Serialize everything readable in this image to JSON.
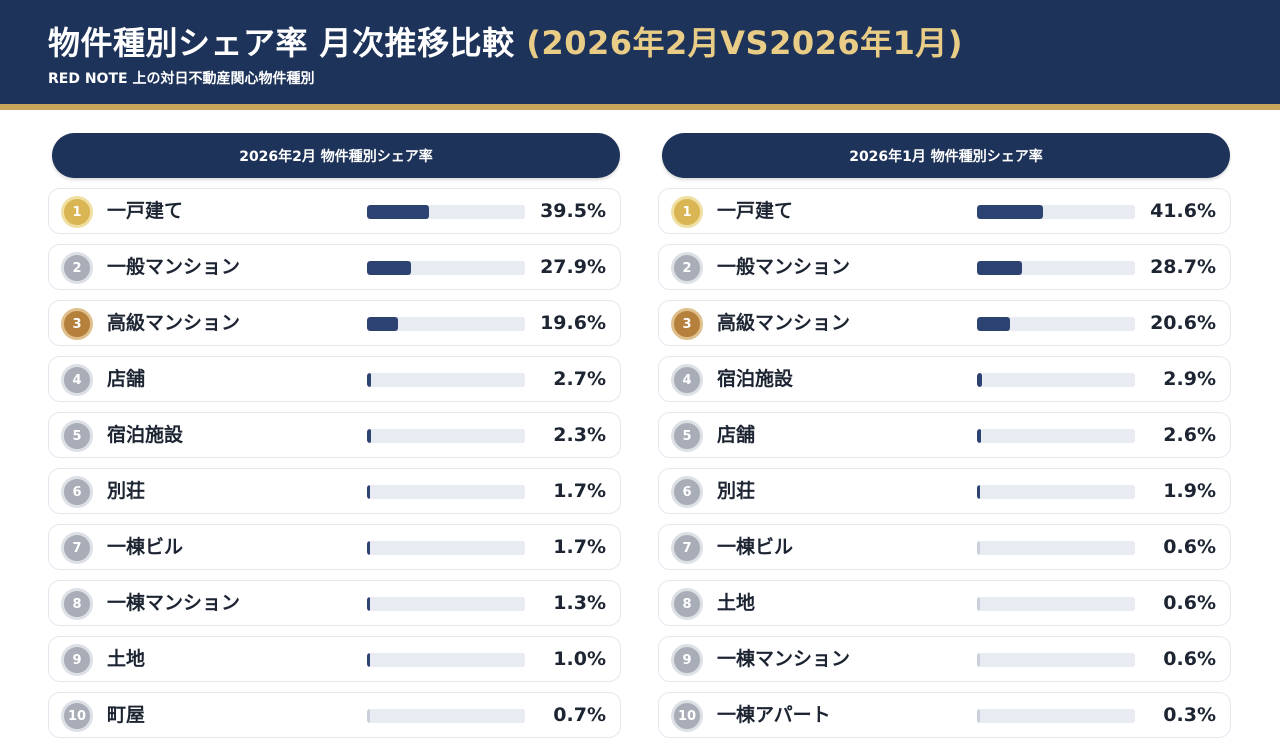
{
  "header": {
    "title_main": "物件種別シェア率 月次推移比較 ",
    "title_period": "(2026年2月VS2026年1月)",
    "subtitle": "RED NOTE 上の対日不動産関心物件種別"
  },
  "colors": {
    "navy": "#1e3359",
    "gold_line": "#c9a75a",
    "bar": "#2c4270",
    "rank_gold": "#d9b553",
    "rank_silver": "#a8adb7",
    "rank_bronze": "#b5803c"
  },
  "chart_data": [
    {
      "type": "bar",
      "title": "2026年2月 物件種別シェア率",
      "unit": "%",
      "ylim": [
        0,
        100
      ],
      "ranks": [
        "1",
        "2",
        "3",
        "4",
        "5",
        "6",
        "7",
        "8",
        "9",
        "10"
      ],
      "categories": [
        "一戸建て",
        "一般マンション",
        "高級マンション",
        "店舗",
        "宿泊施設",
        "別荘",
        "一棟ビル",
        "一棟マンション",
        "土地",
        "町屋"
      ],
      "values": [
        39.5,
        27.9,
        19.6,
        2.7,
        2.3,
        1.7,
        1.7,
        1.3,
        1.0,
        0.7
      ],
      "labels": [
        "39.5%",
        "27.9%",
        "19.6%",
        "2.7%",
        "2.3%",
        "1.7%",
        "1.7%",
        "1.3%",
        "1.0%",
        "0.7%"
      ]
    },
    {
      "type": "bar",
      "title": "2026年1月 物件種別シェア率",
      "unit": "%",
      "ylim": [
        0,
        100
      ],
      "ranks": [
        "1",
        "2",
        "3",
        "4",
        "5",
        "6",
        "7",
        "8",
        "9",
        "10"
      ],
      "categories": [
        "一戸建て",
        "一般マンション",
        "高級マンション",
        "宿泊施設",
        "店舗",
        "別荘",
        "一棟ビル",
        "土地",
        "一棟マンション",
        "一棟アパート"
      ],
      "values": [
        41.6,
        28.7,
        20.6,
        2.9,
        2.6,
        1.9,
        0.6,
        0.6,
        0.6,
        0.3
      ],
      "labels": [
        "41.6%",
        "28.7%",
        "20.6%",
        "2.9%",
        "2.6%",
        "1.9%",
        "0.6%",
        "0.6%",
        "0.6%",
        "0.3%"
      ]
    }
  ]
}
